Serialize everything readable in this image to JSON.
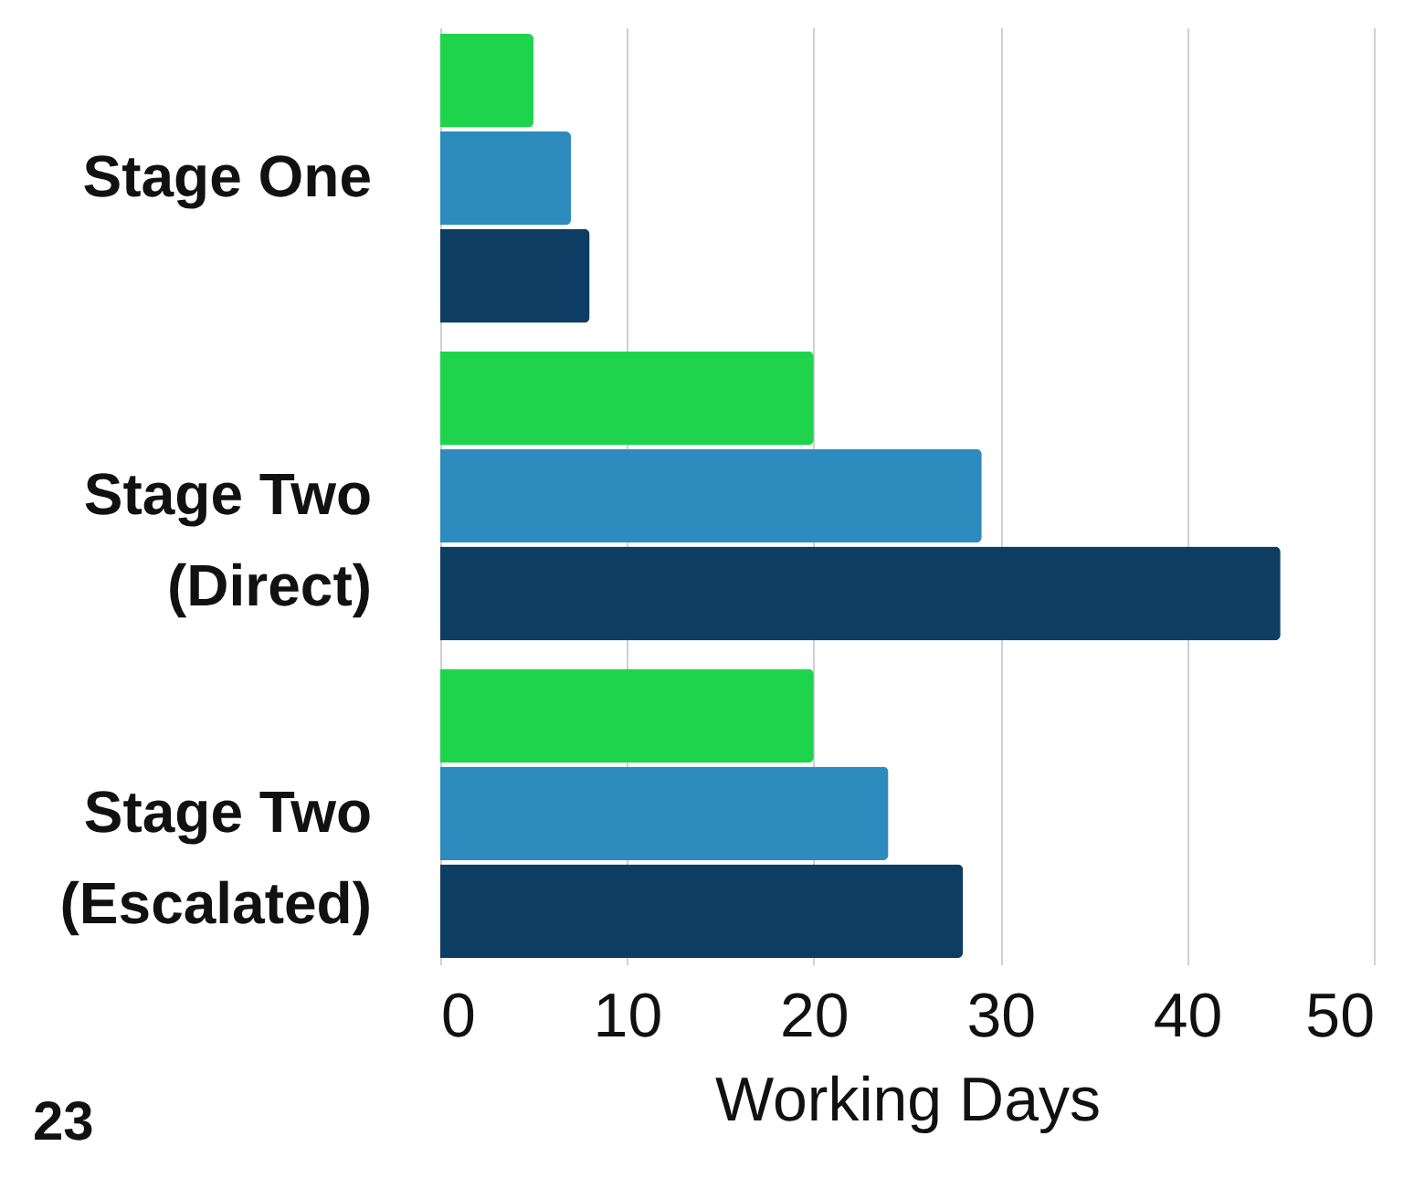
{
  "chart_data": {
    "type": "bar",
    "orientation": "horizontal",
    "xlabel": "Working Days",
    "categories": [
      "Stage One",
      "Stage Two\n(Direct)",
      "Stage Two\n(Escalated)"
    ],
    "series": [
      {
        "color": "#1fd44d",
        "values": [
          5,
          20,
          20
        ]
      },
      {
        "color": "#2e8bbd",
        "values": [
          7,
          29,
          24
        ]
      },
      {
        "color": "#0e3d63",
        "values": [
          8,
          45,
          28
        ]
      }
    ],
    "xlim": [
      0,
      50
    ],
    "xticks": [
      0,
      10,
      20,
      30,
      40,
      50
    ],
    "grid": "x",
    "annotations": [
      "23"
    ]
  }
}
